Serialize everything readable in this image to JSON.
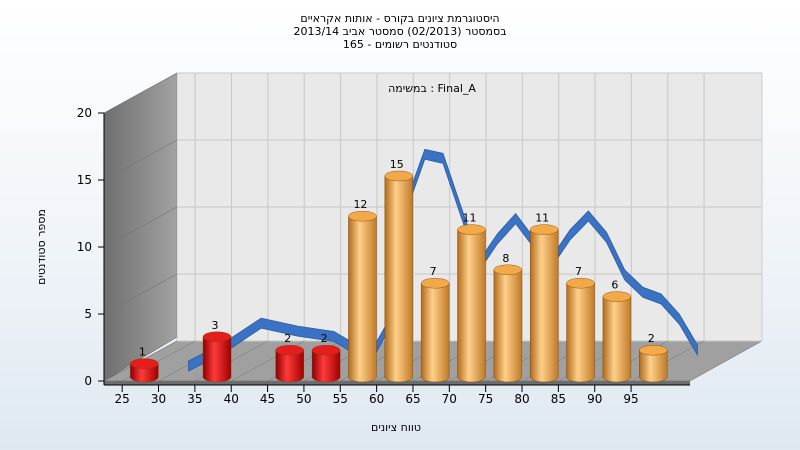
{
  "chart_data": {
    "type": "bar",
    "title_lines": [
      "היסטוגרמת ציונים בקורס - אותות אקראיים",
      "בסמסטר (02/2013) סמסטר אביב 2013/14",
      "סטודנטים רשומים - 165"
    ],
    "subtitle": "במשימה : Final_A",
    "xlabel": "טווח ציונים",
    "ylabel": "מספר סטודנטים",
    "x_ticks": [
      25,
      30,
      35,
      40,
      45,
      50,
      55,
      60,
      65,
      70,
      75,
      80,
      85,
      90,
      95
    ],
    "y_ticks": [
      0,
      5,
      10,
      15,
      20
    ],
    "ylim": [
      0,
      20
    ],
    "grid": true,
    "bars": [
      {
        "x": 27.5,
        "value": 1,
        "color": "red"
      },
      {
        "x": 37.5,
        "value": 3,
        "color": "red"
      },
      {
        "x": 47.5,
        "value": 2,
        "color": "red"
      },
      {
        "x": 52.5,
        "value": 2,
        "color": "red"
      },
      {
        "x": 57.5,
        "value": 12,
        "color": "orange"
      },
      {
        "x": 62.5,
        "value": 15,
        "color": "orange"
      },
      {
        "x": 67.5,
        "value": 7,
        "color": "orange"
      },
      {
        "x": 72.5,
        "value": 11,
        "color": "orange"
      },
      {
        "x": 77.5,
        "value": 8,
        "color": "orange"
      },
      {
        "x": 82.5,
        "value": 11,
        "color": "orange"
      },
      {
        "x": 87.5,
        "value": 7,
        "color": "orange"
      },
      {
        "x": 92.5,
        "value": 6,
        "color": "orange"
      },
      {
        "x": 97.5,
        "value": 2,
        "color": "orange"
      }
    ],
    "curve": {
      "color": "#3a72c4",
      "points": [
        [
          30,
          0
        ],
        [
          35,
          1.4
        ],
        [
          40,
          3.2
        ],
        [
          45,
          2.6
        ],
        [
          50,
          2.2
        ],
        [
          55,
          0.6
        ],
        [
          57.5,
          3
        ],
        [
          60,
          12
        ],
        [
          62.5,
          15.8
        ],
        [
          65,
          15.5
        ],
        [
          67.5,
          11.5
        ],
        [
          70,
          7.5
        ],
        [
          72.5,
          9.5
        ],
        [
          75,
          11
        ],
        [
          77.5,
          9.2
        ],
        [
          80,
          7.8
        ],
        [
          82.5,
          9.8
        ],
        [
          85,
          11.2
        ],
        [
          87.5,
          9.6
        ],
        [
          90,
          6.8
        ],
        [
          92.5,
          5.5
        ],
        [
          95,
          5
        ],
        [
          97.5,
          3.5
        ],
        [
          100,
          1.2
        ]
      ]
    },
    "colors": {
      "red_bar": "#e51d1d",
      "orange_bar": "#f2aa48",
      "curve": "#3a72c4",
      "back_wall": "#e9e9e9",
      "side_wall": "#8a8a8a",
      "floor": "#9a9a9a"
    }
  }
}
